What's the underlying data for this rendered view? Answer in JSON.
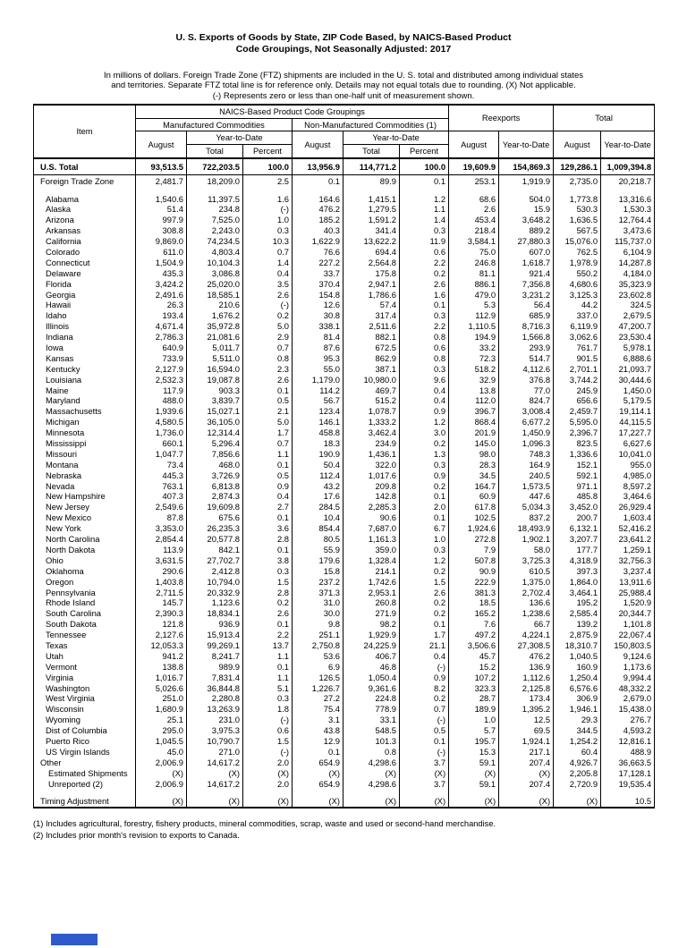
{
  "document": {
    "title_line1": "U. S. Exports of Goods by State, ZIP Code Based, by NAICS-Based Product",
    "title_line2": "Code Groupings, Not Seasonally Adjusted: 2017",
    "notes": [
      "In millions of dollars.  Foreign Trade Zone (FTZ) shipments are included in the U. S. total and distributed among individual states",
      "and territories.  Separate FTZ total line is for reference only.  Details may not equal totals due to rounding.  (X) Not applicable.",
      "(-) Represents zero or less than one-half unit of measurement shown."
    ],
    "footnotes": [
      "(1) Includes agricultural, forestry, fishery products, mineral commodities, scrap, waste and used or second-hand merchandise.",
      "(2) Includes prior month's revision to exports to Canada."
    ]
  },
  "decoration": {
    "blue_bar_color": "#2E5ACB"
  },
  "table": {
    "headers": {
      "item": "Item",
      "naics_group": "NAICS-Based Product Code Groupings",
      "manufactured": "Manufactured Commodities",
      "non_manufactured": "Non-Manufactured Commodities (1)",
      "reexports": "Reexports",
      "total": "Total",
      "august": "August",
      "ytd": "Year-to-Date",
      "ytd_total": "Total",
      "ytd_percent": "Percent"
    },
    "rows": [
      {
        "label": "U.S. Total",
        "indent": 0,
        "bold": true,
        "rule": true,
        "tall": true,
        "values": [
          "93,513.5",
          "722,203.5",
          "100.0",
          "13,956.9",
          "114,771.2",
          "100.0",
          "19,609.9",
          "154,869.3",
          "129,286.1",
          "1,009,394.8"
        ]
      },
      {
        "label": "Foreign Trade Zone",
        "indent": 0,
        "values": [
          "2,481.7",
          "18,209.0",
          "2.5",
          "0.1",
          "89.9",
          "0.1",
          "253.1",
          "1,919.9",
          "2,735.0",
          "20,218.7"
        ]
      },
      {
        "spacer": true
      },
      {
        "label": "Alabama",
        "values": [
          "1,540.6",
          "11,397.5",
          "1.6",
          "164.6",
          "1,415.1",
          "1.2",
          "68.6",
          "504.0",
          "1,773.8",
          "13,316.6"
        ]
      },
      {
        "label": "Alaska",
        "values": [
          "51.4",
          "234.8",
          "(-)",
          "476.2",
          "1,279.5",
          "1.1",
          "2.6",
          "15.9",
          "530.3",
          "1,530.3"
        ]
      },
      {
        "label": "Arizona",
        "values": [
          "997.9",
          "7,525.0",
          "1.0",
          "185.2",
          "1,591.2",
          "1.4",
          "453.4",
          "3,648.2",
          "1,636.5",
          "12,764.4"
        ]
      },
      {
        "label": "Arkansas",
        "values": [
          "308.8",
          "2,243.0",
          "0.3",
          "40.3",
          "341.4",
          "0.3",
          "218.4",
          "889.2",
          "567.5",
          "3,473.6"
        ]
      },
      {
        "label": "California",
        "values": [
          "9,869.0",
          "74,234.5",
          "10.3",
          "1,622.9",
          "13,622.2",
          "11.9",
          "3,584.1",
          "27,880.3",
          "15,076.0",
          "115,737.0"
        ]
      },
      {
        "label": "Colorado",
        "values": [
          "611.0",
          "4,803.4",
          "0.7",
          "76.6",
          "694.4",
          "0.6",
          "75.0",
          "607.0",
          "762.5",
          "6,104.9"
        ]
      },
      {
        "label": "Connecticut",
        "values": [
          "1,504.9",
          "10,104.3",
          "1.4",
          "227.2",
          "2,564.8",
          "2.2",
          "246.8",
          "1,618.7",
          "1,978.9",
          "14,287.8"
        ]
      },
      {
        "label": "Delaware",
        "values": [
          "435.3",
          "3,086.8",
          "0.4",
          "33.7",
          "175.8",
          "0.2",
          "81.1",
          "921.4",
          "550.2",
          "4,184.0"
        ]
      },
      {
        "label": "Florida",
        "values": [
          "3,424.2",
          "25,020.0",
          "3.5",
          "370.4",
          "2,947.1",
          "2.6",
          "886.1",
          "7,356.8",
          "4,680.6",
          "35,323.9"
        ]
      },
      {
        "label": "Georgia",
        "values": [
          "2,491.6",
          "18,585.1",
          "2.6",
          "154.8",
          "1,786.6",
          "1.6",
          "479.0",
          "3,231.2",
          "3,125.3",
          "23,602.8"
        ]
      },
      {
        "label": "Hawaii",
        "values": [
          "26.3",
          "210.6",
          "(-)",
          "12.6",
          "57.4",
          "0.1",
          "5.3",
          "56.4",
          "44.2",
          "324.5"
        ]
      },
      {
        "label": "Idaho",
        "values": [
          "193.4",
          "1,676.2",
          "0.2",
          "30.8",
          "317.4",
          "0.3",
          "112.9",
          "685.9",
          "337.0",
          "2,679.5"
        ]
      },
      {
        "label": "Illinois",
        "values": [
          "4,671.4",
          "35,972.8",
          "5.0",
          "338.1",
          "2,511.6",
          "2.2",
          "1,110.5",
          "8,716.3",
          "6,119.9",
          "47,200.7"
        ]
      },
      {
        "label": "Indiana",
        "values": [
          "2,786.3",
          "21,081.6",
          "2.9",
          "81.4",
          "882.1",
          "0.8",
          "194.9",
          "1,566.8",
          "3,062.6",
          "23,530.4"
        ]
      },
      {
        "label": "Iowa",
        "values": [
          "640.9",
          "5,011.7",
          "0.7",
          "87.6",
          "672.5",
          "0.6",
          "33.2",
          "293.9",
          "761.7",
          "5,978.1"
        ]
      },
      {
        "label": "Kansas",
        "values": [
          "733.9",
          "5,511.0",
          "0.8",
          "95.3",
          "862.9",
          "0.8",
          "72.3",
          "514.7",
          "901.5",
          "6,888.6"
        ]
      },
      {
        "label": "Kentucky",
        "values": [
          "2,127.9",
          "16,594.0",
          "2.3",
          "55.0",
          "387.1",
          "0.3",
          "518.2",
          "4,112.6",
          "2,701.1",
          "21,093.7"
        ]
      },
      {
        "label": "Louisiana",
        "values": [
          "2,532.3",
          "19,087.8",
          "2.6",
          "1,179.0",
          "10,980.0",
          "9.6",
          "32.9",
          "376.8",
          "3,744.2",
          "30,444.6"
        ]
      },
      {
        "label": "Maine",
        "values": [
          "117.9",
          "903.3",
          "0.1",
          "114.2",
          "469.7",
          "0.4",
          "13.8",
          "77.0",
          "245.9",
          "1,450.0"
        ]
      },
      {
        "label": "Maryland",
        "values": [
          "488.0",
          "3,839.7",
          "0.5",
          "56.7",
          "515.2",
          "0.4",
          "112.0",
          "824.7",
          "656.6",
          "5,179.5"
        ]
      },
      {
        "label": "Massachusetts",
        "values": [
          "1,939.6",
          "15,027.1",
          "2.1",
          "123.4",
          "1,078.7",
          "0.9",
          "396.7",
          "3,008.4",
          "2,459.7",
          "19,114.1"
        ]
      },
      {
        "label": "Michigan",
        "values": [
          "4,580.5",
          "36,105.0",
          "5.0",
          "146.1",
          "1,333.2",
          "1.2",
          "868.4",
          "6,677.2",
          "5,595.0",
          "44,115.5"
        ]
      },
      {
        "label": "Minnesota",
        "values": [
          "1,736.0",
          "12,314.4",
          "1.7",
          "458.8",
          "3,462.4",
          "3.0",
          "201.9",
          "1,450.9",
          "2,396.7",
          "17,227.7"
        ]
      },
      {
        "label": "Mississippi",
        "values": [
          "660.1",
          "5,296.4",
          "0.7",
          "18.3",
          "234.9",
          "0.2",
          "145.0",
          "1,096.3",
          "823.5",
          "6,627.6"
        ]
      },
      {
        "label": "Missouri",
        "values": [
          "1,047.7",
          "7,856.6",
          "1.1",
          "190.9",
          "1,436.1",
          "1.3",
          "98.0",
          "748.3",
          "1,336.6",
          "10,041.0"
        ]
      },
      {
        "label": "Montana",
        "values": [
          "73.4",
          "468.0",
          "0.1",
          "50.4",
          "322.0",
          "0.3",
          "28.3",
          "164.9",
          "152.1",
          "955.0"
        ]
      },
      {
        "label": "Nebraska",
        "values": [
          "445.3",
          "3,726.9",
          "0.5",
          "112.4",
          "1,017.6",
          "0.9",
          "34.5",
          "240.5",
          "592.1",
          "4,985.0"
        ]
      },
      {
        "label": "Nevada",
        "values": [
          "763.1",
          "6,813.8",
          "0.9",
          "43.2",
          "209.8",
          "0.2",
          "164.7",
          "1,573.5",
          "971.1",
          "8,597.2"
        ]
      },
      {
        "label": "New Hampshire",
        "values": [
          "407.3",
          "2,874.3",
          "0.4",
          "17.6",
          "142.8",
          "0.1",
          "60.9",
          "447.6",
          "485.8",
          "3,464.6"
        ]
      },
      {
        "label": "New Jersey",
        "values": [
          "2,549.6",
          "19,609.8",
          "2.7",
          "284.5",
          "2,285.3",
          "2.0",
          "617.8",
          "5,034.3",
          "3,452.0",
          "26,929.4"
        ]
      },
      {
        "label": "New Mexico",
        "values": [
          "87.8",
          "675.6",
          "0.1",
          "10.4",
          "90.6",
          "0.1",
          "102.5",
          "837.2",
          "200.7",
          "1,603.4"
        ]
      },
      {
        "label": "New York",
        "values": [
          "3,353.0",
          "26,235.3",
          "3.6",
          "854.4",
          "7,687.0",
          "6.7",
          "1,924.6",
          "18,493.9",
          "6,132.1",
          "52,416.2"
        ]
      },
      {
        "label": "North Carolina",
        "values": [
          "2,854.4",
          "20,577.8",
          "2.8",
          "80.5",
          "1,161.3",
          "1.0",
          "272.8",
          "1,902.1",
          "3,207.7",
          "23,641.2"
        ]
      },
      {
        "label": "North Dakota",
        "values": [
          "113.9",
          "842.1",
          "0.1",
          "55.9",
          "359.0",
          "0.3",
          "7.9",
          "58.0",
          "177.7",
          "1,259.1"
        ]
      },
      {
        "label": "Ohio",
        "values": [
          "3,631.5",
          "27,702.7",
          "3.8",
          "179.6",
          "1,328.4",
          "1.2",
          "507.8",
          "3,725.3",
          "4,318.9",
          "32,756.3"
        ]
      },
      {
        "label": "Oklahoma",
        "values": [
          "290.6",
          "2,412.8",
          "0.3",
          "15.8",
          "214.1",
          "0.2",
          "90.9",
          "610.5",
          "397.3",
          "3,237.4"
        ]
      },
      {
        "label": "Oregon",
        "values": [
          "1,403.8",
          "10,794.0",
          "1.5",
          "237.2",
          "1,742.6",
          "1.5",
          "222.9",
          "1,375.0",
          "1,864.0",
          "13,911.6"
        ]
      },
      {
        "label": "Pennsylvania",
        "values": [
          "2,711.5",
          "20,332.9",
          "2.8",
          "371.3",
          "2,953.1",
          "2.6",
          "381.3",
          "2,702.4",
          "3,464.1",
          "25,988.4"
        ]
      },
      {
        "label": "Rhode Island",
        "values": [
          "145.7",
          "1,123.6",
          "0.2",
          "31.0",
          "260.8",
          "0.2",
          "18.5",
          "136.6",
          "195.2",
          "1,520.9"
        ]
      },
      {
        "label": "South Carolina",
        "values": [
          "2,390.3",
          "18,834.1",
          "2.6",
          "30.0",
          "271.9",
          "0.2",
          "165.2",
          "1,238.6",
          "2,585.4",
          "20,344.7"
        ]
      },
      {
        "label": "South Dakota",
        "values": [
          "121.8",
          "936.9",
          "0.1",
          "9.8",
          "98.2",
          "0.1",
          "7.6",
          "66.7",
          "139.2",
          "1,101.8"
        ]
      },
      {
        "label": "Tennessee",
        "values": [
          "2,127.6",
          "15,913.4",
          "2.2",
          "251.1",
          "1,929.9",
          "1.7",
          "497.2",
          "4,224.1",
          "2,875.9",
          "22,067.4"
        ]
      },
      {
        "label": "Texas",
        "values": [
          "12,053.3",
          "99,269.1",
          "13.7",
          "2,750.8",
          "24,225.9",
          "21.1",
          "3,506.6",
          "27,308.5",
          "18,310.7",
          "150,803.5"
        ]
      },
      {
        "label": "Utah",
        "values": [
          "941.2",
          "8,241.7",
          "1.1",
          "53.6",
          "406.7",
          "0.4",
          "45.7",
          "476.2",
          "1,040.5",
          "9,124.6"
        ]
      },
      {
        "label": "Vermont",
        "values": [
          "138.8",
          "989.9",
          "0.1",
          "6.9",
          "46.8",
          "(-)",
          "15.2",
          "136.9",
          "160.9",
          "1,173.6"
        ]
      },
      {
        "label": "Virginia",
        "values": [
          "1,016.7",
          "7,831.4",
          "1.1",
          "126.5",
          "1,050.4",
          "0.9",
          "107.2",
          "1,112.6",
          "1,250.4",
          "9,994.4"
        ]
      },
      {
        "label": "Washington",
        "values": [
          "5,026.6",
          "36,844.8",
          "5.1",
          "1,226.7",
          "9,361.6",
          "8.2",
          "323.3",
          "2,125.8",
          "6,576.6",
          "48,332.2"
        ]
      },
      {
        "label": "West Virginia",
        "values": [
          "251.0",
          "2,280.8",
          "0.3",
          "27.2",
          "224.8",
          "0.2",
          "28.7",
          "173.4",
          "306.9",
          "2,679.0"
        ]
      },
      {
        "label": "Wisconsin",
        "values": [
          "1,680.9",
          "13,263.9",
          "1.8",
          "75.4",
          "778.9",
          "0.7",
          "189.9",
          "1,395.2",
          "1,946.1",
          "15,438.0"
        ]
      },
      {
        "label": "Wyoming",
        "values": [
          "25.1",
          "231.0",
          "(-)",
          "3.1",
          "33.1",
          "(-)",
          "1.0",
          "12.5",
          "29.3",
          "276.7"
        ]
      },
      {
        "label": "Dist of Columbia",
        "values": [
          "295.0",
          "3,975.3",
          "0.6",
          "43.8",
          "548.5",
          "0.5",
          "5.7",
          "69.5",
          "344.5",
          "4,593.2"
        ]
      },
      {
        "label": "Puerto Rico",
        "values": [
          "1,045.5",
          "10,790.7",
          "1.5",
          "12.9",
          "101.3",
          "0.1",
          "195.7",
          "1,924.1",
          "1,254.2",
          "12,816.1"
        ]
      },
      {
        "label": "US Virgin Islands",
        "values": [
          "45.0",
          "271.0",
          "(-)",
          "0.1",
          "0.8",
          "(-)",
          "15.3",
          "217.1",
          "60.4",
          "488.9"
        ]
      },
      {
        "label": "Other",
        "indent": 0,
        "values": [
          "2,006.9",
          "14,617.2",
          "2.0",
          "654.9",
          "4,298.6",
          "3.7",
          "59.1",
          "207.4",
          "4,926.7",
          "36,663.5"
        ]
      },
      {
        "label": "Estimated Shipments",
        "indent": 2,
        "values": [
          "(X)",
          "(X)",
          "(X)",
          "(X)",
          "(X)",
          "(X)",
          "(X)",
          "(X)",
          "2,205.8",
          "17,128.1"
        ]
      },
      {
        "label": "Unreported (2)",
        "indent": 2,
        "values": [
          "2,006.9",
          "14,617.2",
          "2.0",
          "654.9",
          "4,298.6",
          "3.7",
          "59.1",
          "207.4",
          "2,720.9",
          "19,535.4"
        ]
      },
      {
        "spacer": true
      },
      {
        "label": "Timing Adjustment",
        "indent": 0,
        "values": [
          "(X)",
          "(X)",
          "(X)",
          "(X)",
          "(X)",
          "(X)",
          "(X)",
          "(X)",
          "(X)",
          "10.5"
        ]
      }
    ]
  }
}
